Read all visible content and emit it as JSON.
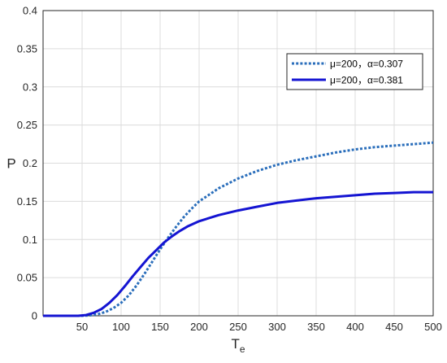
{
  "chart_data": {
    "type": "line",
    "xlabel": "T",
    "xlabel_sub": "e",
    "ylabel": "P",
    "xlim": [
      0,
      500
    ],
    "ylim": [
      0,
      0.4
    ],
    "x_ticks": [
      50,
      100,
      150,
      200,
      250,
      300,
      350,
      400,
      450,
      500
    ],
    "y_ticks": [
      0,
      0.05,
      0.1,
      0.15,
      0.2,
      0.25,
      0.3,
      0.35,
      0.4
    ],
    "x_tick_labels": [
      "50",
      "100",
      "150",
      "200",
      "250",
      "300",
      "350",
      "400",
      "450",
      "500"
    ],
    "y_tick_labels": [
      "0",
      "0.05",
      "0.1",
      "0.15",
      "0.2",
      "0.25",
      "0.3",
      "0.35",
      "0.4"
    ],
    "grid": true,
    "legend_position": "top-right",
    "series": [
      {
        "name": "μ=200，α=0.307",
        "style": "dotted",
        "color": "#2a6ebb",
        "x": [
          0,
          50,
          60,
          70,
          80,
          90,
          100,
          110,
          120,
          130,
          140,
          150,
          160,
          170,
          180,
          190,
          200,
          225,
          250,
          275,
          300,
          325,
          350,
          375,
          400,
          425,
          450,
          475,
          500
        ],
        "y": [
          0,
          0,
          0.0005,
          0.002,
          0.005,
          0.01,
          0.017,
          0.027,
          0.04,
          0.055,
          0.071,
          0.087,
          0.102,
          0.116,
          0.129,
          0.14,
          0.15,
          0.167,
          0.18,
          0.19,
          0.198,
          0.204,
          0.209,
          0.214,
          0.218,
          0.221,
          0.223,
          0.225,
          0.227
        ]
      },
      {
        "name": "μ=200，α=0.381",
        "style": "solid",
        "color": "#1414d2",
        "x": [
          0,
          45,
          55,
          65,
          75,
          85,
          95,
          105,
          115,
          125,
          135,
          145,
          155,
          165,
          175,
          185,
          200,
          225,
          250,
          275,
          300,
          325,
          350,
          375,
          400,
          425,
          450,
          475,
          500
        ],
        "y": [
          0,
          0,
          0.001,
          0.004,
          0.009,
          0.017,
          0.027,
          0.039,
          0.052,
          0.064,
          0.076,
          0.086,
          0.096,
          0.104,
          0.111,
          0.117,
          0.124,
          0.132,
          0.138,
          0.143,
          0.148,
          0.151,
          0.154,
          0.156,
          0.158,
          0.16,
          0.161,
          0.162,
          0.162
        ]
      }
    ]
  }
}
